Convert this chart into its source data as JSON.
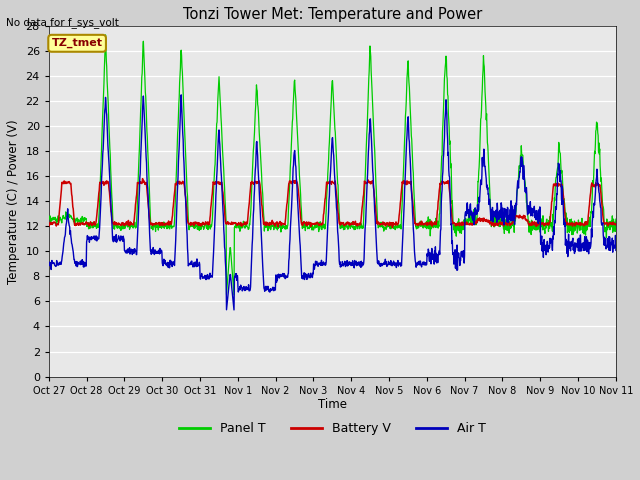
{
  "title": "Tonzi Tower Met: Temperature and Power",
  "no_data_label": "No data for f_sys_volt",
  "ylabel": "Temperature (C) / Power (V)",
  "xlabel": "Time",
  "ylim": [
    0,
    28
  ],
  "yticks": [
    0,
    2,
    4,
    6,
    8,
    10,
    12,
    14,
    16,
    18,
    20,
    22,
    24,
    26,
    28
  ],
  "xtick_labels": [
    "Oct 27",
    "Oct 28",
    "Oct 29",
    "Oct 30",
    "Oct 31",
    "Nov 1",
    "Nov 2",
    "Nov 3",
    "Nov 4",
    "Nov 5",
    "Nov 6",
    "Nov 7",
    "Nov 8",
    "Nov 9",
    "Nov 10",
    "Nov 11"
  ],
  "legend_entries": [
    "Panel T",
    "Battery V",
    "Air T"
  ],
  "panel_color": "#00cc00",
  "battery_color": "#cc0000",
  "air_color": "#0000bb",
  "tztmet_label": "TZ_tmet",
  "tztmet_box_color": "#ffff99",
  "tztmet_box_border": "#aa8800",
  "panel_peaks": [
    13,
    27,
    27,
    26.5,
    24,
    23.5,
    24,
    24,
    26.5,
    25.5,
    26,
    25.5,
    18.5,
    18.5,
    20.5
  ],
  "air_peaks": [
    13,
    22.5,
    22.5,
    22.5,
    20,
    19,
    18.5,
    19.5,
    21,
    21,
    22,
    17.5,
    17.5,
    17,
    16.5
  ],
  "night_lows_panel": [
    12.5,
    12,
    12,
    12,
    12,
    12,
    12,
    12,
    12,
    12,
    12,
    12.5,
    12,
    12,
    12
  ],
  "night_lows_air": [
    9,
    11,
    10,
    9,
    8,
    7,
    8,
    9,
    9,
    9,
    9.5,
    13,
    13,
    10.5,
    10.5
  ],
  "batt_plateau": [
    15.5,
    15.5,
    15.5,
    15.5,
    15.5,
    15.5,
    15.5,
    15.5,
    15.5,
    15.5,
    15.5,
    12.5,
    12.8,
    15.3,
    15.3
  ],
  "batt_base": 12.2,
  "figsize": [
    6.4,
    4.8
  ],
  "dpi": 100
}
